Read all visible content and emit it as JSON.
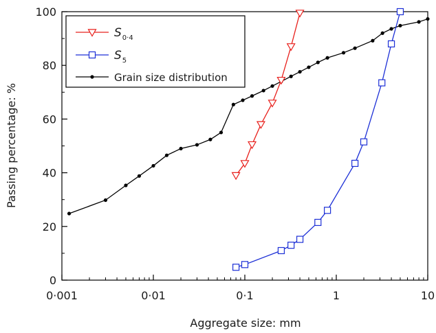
{
  "chart_data": {
    "type": "line",
    "xlabel": "Aggregate size: mm",
    "ylabel": "Passing percentage: %",
    "xscale": "log",
    "xlim": [
      0.001,
      10
    ],
    "ylim": [
      0,
      100
    ],
    "xticks": [
      {
        "value": 0.001,
        "label": "0·001"
      },
      {
        "value": 0.01,
        "label": "0·01"
      },
      {
        "value": 0.1,
        "label": "0·1"
      },
      {
        "value": 1,
        "label": "1"
      },
      {
        "value": 10,
        "label": "10"
      }
    ],
    "yticks": [
      0,
      20,
      40,
      60,
      80,
      100
    ],
    "legend": {
      "position": "top-left"
    },
    "series": [
      {
        "name": "S0·4",
        "label_main": "S",
        "label_sub": "0·4",
        "color": "#e8201c",
        "marker": "triangle-down-open",
        "x": [
          0.08,
          0.1,
          0.12,
          0.15,
          0.2,
          0.25,
          0.32,
          0.4
        ],
        "y": [
          39,
          43.5,
          50.5,
          58,
          66,
          74.5,
          87,
          99.5
        ]
      },
      {
        "name": "S5",
        "label_main": "S",
        "label_sub": "5",
        "color": "#1c2fd6",
        "marker": "square-open",
        "x": [
          0.08,
          0.1,
          0.25,
          0.32,
          0.4,
          0.63,
          0.8,
          1.6,
          2,
          3.15,
          4,
          5
        ],
        "y": [
          4.8,
          5.8,
          11,
          13,
          15.2,
          21.5,
          26,
          43.5,
          51.5,
          73.5,
          88,
          100
        ]
      },
      {
        "name": "Grain size distribution",
        "label_main": "Grain size distribution",
        "label_sub": "",
        "color": "#000000",
        "marker": "dot",
        "x": [
          0.0012,
          0.003,
          0.005,
          0.007,
          0.01,
          0.014,
          0.02,
          0.03,
          0.042,
          0.055,
          0.075,
          0.095,
          0.12,
          0.16,
          0.2,
          0.25,
          0.32,
          0.4,
          0.5,
          0.63,
          0.8,
          1.2,
          1.6,
          2.5,
          3.2,
          4,
          5,
          8,
          10
        ],
        "y": [
          24.8,
          29.8,
          35.3,
          38.8,
          42.6,
          46.5,
          49,
          50.4,
          52.4,
          55,
          65.4,
          67,
          68.6,
          70.6,
          72.3,
          74,
          75.9,
          77.6,
          79.3,
          81.1,
          82.8,
          84.7,
          86.4,
          89.2,
          92,
          93.6,
          94.8,
          96.2,
          97.3
        ]
      }
    ]
  }
}
